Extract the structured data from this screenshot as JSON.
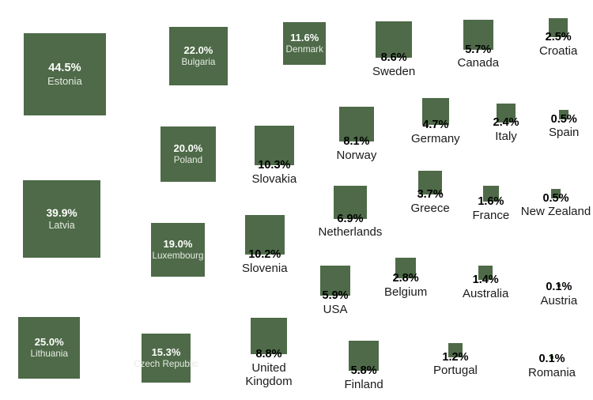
{
  "chart_data": {
    "type": "proportional-area",
    "title": "",
    "unit": "%",
    "colors": {
      "square": "#4e6a48",
      "inside_text": "#ffffff",
      "outside_text": "#1a1a1a"
    },
    "items": [
      {
        "country": "Estonia",
        "value": 44.5,
        "label": "44.5%"
      },
      {
        "country": "Latvia",
        "value": 39.9,
        "label": "39.9%"
      },
      {
        "country": "Lithuania",
        "value": 25.0,
        "label": "25.0%"
      },
      {
        "country": "Bulgaria",
        "value": 22.0,
        "label": "22.0%"
      },
      {
        "country": "Poland",
        "value": 20.0,
        "label": "20.0%"
      },
      {
        "country": "Luxembourg",
        "value": 19.0,
        "label": "19.0%"
      },
      {
        "country": "Czech Republic",
        "value": 15.3,
        "label": "15.3%"
      },
      {
        "country": "Denmark",
        "value": 11.6,
        "label": "11.6%"
      },
      {
        "country": "Slovakia",
        "value": 10.3,
        "label": "10.3%"
      },
      {
        "country": "Slovenia",
        "value": 10.2,
        "label": "10.2%"
      },
      {
        "country": "United Kingdom",
        "value": 8.8,
        "label": "8.8%"
      },
      {
        "country": "Sweden",
        "value": 8.6,
        "label": "8.6%"
      },
      {
        "country": "Norway",
        "value": 8.1,
        "label": "8.1%"
      },
      {
        "country": "Netherlands",
        "value": 6.9,
        "label": "6.9%"
      },
      {
        "country": "USA",
        "value": 5.9,
        "label": "5.9%"
      },
      {
        "country": "Finland",
        "value": 5.8,
        "label": "5.8%"
      },
      {
        "country": "Canada",
        "value": 5.7,
        "label": "5.7%"
      },
      {
        "country": "Germany",
        "value": 4.7,
        "label": "4.7%"
      },
      {
        "country": "Greece",
        "value": 3.7,
        "label": "3.7%"
      },
      {
        "country": "Belgium",
        "value": 2.8,
        "label": "2.8%"
      },
      {
        "country": "Croatia",
        "value": 2.5,
        "label": "2.5%"
      },
      {
        "country": "Italy",
        "value": 2.4,
        "label": "2.4%"
      },
      {
        "country": "France",
        "value": 1.6,
        "label": "1.6%"
      },
      {
        "country": "Australia",
        "value": 1.4,
        "label": "1.4%"
      },
      {
        "country": "Portugal",
        "value": 1.2,
        "label": "1.2%"
      },
      {
        "country": "Spain",
        "value": 0.5,
        "label": "0.5%"
      },
      {
        "country": "New Zealand",
        "value": 0.5,
        "label": "0.5%"
      },
      {
        "country": "Austria",
        "value": 0.1,
        "label": "0.1%"
      },
      {
        "country": "Romania",
        "value": 0.1,
        "label": "0.1%"
      }
    ]
  }
}
